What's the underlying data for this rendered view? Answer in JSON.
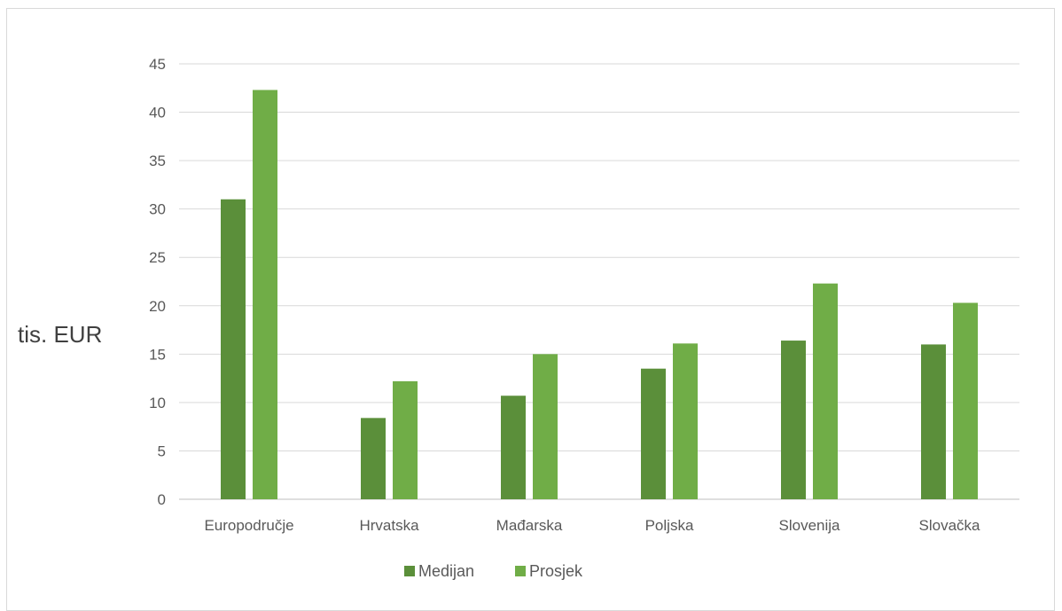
{
  "chart_data": {
    "type": "bar",
    "title": "",
    "xlabel": "",
    "ylabel": "tis. EUR",
    "ylim": [
      0,
      45
    ],
    "yticks": [
      0,
      5,
      10,
      15,
      20,
      25,
      30,
      35,
      40,
      45
    ],
    "grid": true,
    "legend_position": "bottom",
    "categories": [
      "Europodručje",
      "Hrvatska",
      "Mađarska",
      "Poljska",
      "Slovenija",
      "Slovačka"
    ],
    "series": [
      {
        "name": "Medijan",
        "color": "#5b8f3a",
        "values": [
          31.0,
          8.4,
          10.7,
          13.5,
          16.4,
          16.0
        ]
      },
      {
        "name": "Prosjek",
        "color": "#70ad47",
        "values": [
          42.3,
          12.2,
          15.0,
          16.1,
          22.3,
          20.3
        ]
      }
    ]
  }
}
